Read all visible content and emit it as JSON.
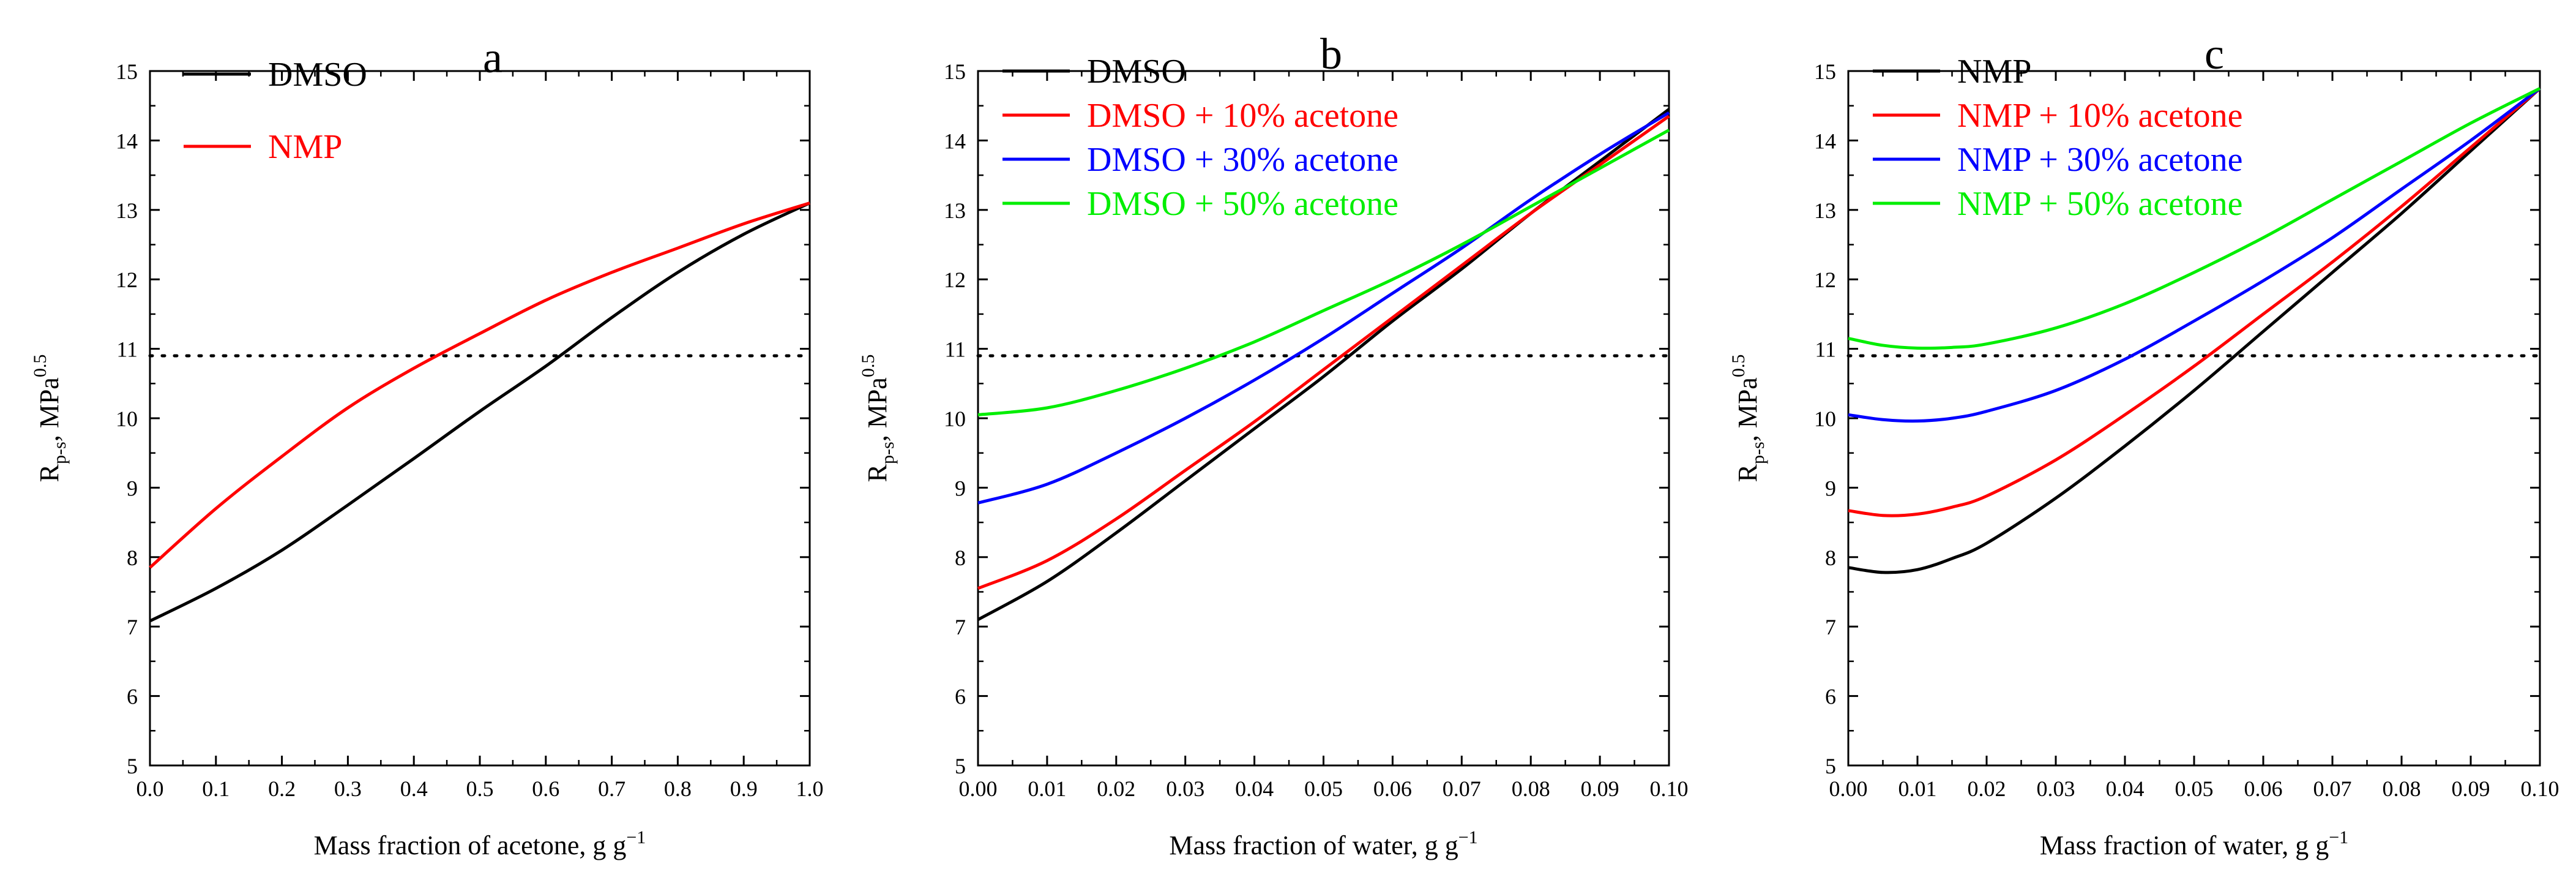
{
  "chart_data": [
    {
      "panel_label": "a",
      "type": "line",
      "xlabel": "Mass fraction of acetone, g g",
      "xlabel_sup": "−1",
      "ylabel": "R",
      "ylabel_sub": "p-s",
      "ylabel_unit": ", MPa",
      "ylabel_sup": "0.5",
      "xlim": [
        0.0,
        1.0
      ],
      "ylim": [
        5,
        15
      ],
      "xticks": [
        "0.0",
        "0.1",
        "0.2",
        "0.3",
        "0.4",
        "0.5",
        "0.6",
        "0.7",
        "0.8",
        "0.9",
        "1.0"
      ],
      "yticks": [
        "5",
        "6",
        "7",
        "8",
        "9",
        "10",
        "11",
        "12",
        "13",
        "14",
        "15"
      ],
      "reference_line": {
        "y": 10.9,
        "style": "dotted"
      },
      "legend_position": "top-left",
      "series": [
        {
          "name": "DMSO",
          "color": "#000000",
          "x": [
            0.0,
            0.1,
            0.2,
            0.3,
            0.4,
            0.5,
            0.6,
            0.7,
            0.8,
            0.9,
            1.0
          ],
          "y": [
            7.08,
            7.55,
            8.1,
            8.75,
            9.42,
            10.1,
            10.75,
            11.45,
            12.1,
            12.65,
            13.1
          ]
        },
        {
          "name": "NMP",
          "color": "#ff0000",
          "x": [
            0.0,
            0.1,
            0.2,
            0.3,
            0.4,
            0.5,
            0.6,
            0.7,
            0.8,
            0.9,
            1.0
          ],
          "y": [
            7.85,
            8.7,
            9.45,
            10.15,
            10.72,
            11.22,
            11.7,
            12.1,
            12.45,
            12.8,
            13.1
          ]
        }
      ]
    },
    {
      "panel_label": "b",
      "type": "line",
      "xlabel": "Mass fraction of water, g g",
      "xlabel_sup": "−1",
      "ylabel": "R",
      "ylabel_sub": "p-s",
      "ylabel_unit": ", MPa",
      "ylabel_sup": "0.5",
      "xlim": [
        0.0,
        0.1
      ],
      "ylim": [
        5,
        15
      ],
      "xticks": [
        "0.00",
        "0.01",
        "0.02",
        "0.03",
        "0.04",
        "0.05",
        "0.06",
        "0.07",
        "0.08",
        "0.09",
        "0.10"
      ],
      "yticks": [
        "5",
        "6",
        "7",
        "8",
        "9",
        "10",
        "11",
        "12",
        "13",
        "14",
        "15"
      ],
      "reference_line": {
        "y": 10.9,
        "style": "dotted"
      },
      "legend_position": "top-left",
      "series": [
        {
          "name": "DMSO",
          "color": "#000000",
          "x": [
            0.0,
            0.01,
            0.02,
            0.03,
            0.04,
            0.05,
            0.06,
            0.07,
            0.08,
            0.09,
            0.1
          ],
          "y": [
            7.1,
            7.65,
            8.35,
            9.1,
            9.85,
            10.6,
            11.4,
            12.15,
            12.95,
            13.7,
            14.45
          ]
        },
        {
          "name": "DMSO + 10% acetone",
          "color": "#ff0000",
          "x": [
            0.0,
            0.01,
            0.02,
            0.03,
            0.04,
            0.05,
            0.06,
            0.07,
            0.08,
            0.09,
            0.1
          ],
          "y": [
            7.55,
            7.95,
            8.55,
            9.25,
            9.95,
            10.7,
            11.45,
            12.2,
            12.95,
            13.65,
            14.35
          ]
        },
        {
          "name": "DMSO + 30% acetone",
          "color": "#0000ff",
          "x": [
            0.0,
            0.01,
            0.02,
            0.03,
            0.04,
            0.05,
            0.06,
            0.07,
            0.08,
            0.09,
            0.1
          ],
          "y": [
            8.78,
            9.05,
            9.5,
            10.0,
            10.55,
            11.15,
            11.8,
            12.45,
            13.15,
            13.8,
            14.4
          ]
        },
        {
          "name": "DMSO + 50% acetone",
          "color": "#00ee00",
          "x": [
            0.0,
            0.01,
            0.02,
            0.03,
            0.04,
            0.05,
            0.06,
            0.07,
            0.08,
            0.09,
            0.1
          ],
          "y": [
            10.05,
            10.15,
            10.4,
            10.72,
            11.1,
            11.55,
            12.0,
            12.5,
            13.05,
            13.6,
            14.15
          ]
        }
      ]
    },
    {
      "panel_label": "c",
      "type": "line",
      "xlabel": "Mass fraction of water, g g",
      "xlabel_sup": "−1",
      "ylabel": "R",
      "ylabel_sub": "p-s",
      "ylabel_unit": ", MPa",
      "ylabel_sup": "0.5",
      "xlim": [
        0.0,
        0.1
      ],
      "ylim": [
        5,
        15
      ],
      "xticks": [
        "0.00",
        "0.01",
        "0.02",
        "0.03",
        "0.04",
        "0.05",
        "0.06",
        "0.07",
        "0.08",
        "0.09",
        "0.10"
      ],
      "yticks": [
        "5",
        "6",
        "7",
        "8",
        "9",
        "10",
        "11",
        "12",
        "13",
        "14",
        "15"
      ],
      "reference_line": {
        "y": 10.9,
        "style": "dotted"
      },
      "legend_position": "top-left",
      "series": [
        {
          "name": "NMP",
          "color": "#000000",
          "x": [
            0.0,
            0.005,
            0.01,
            0.015,
            0.02,
            0.03,
            0.04,
            0.05,
            0.06,
            0.07,
            0.08,
            0.09,
            0.1
          ],
          "y": [
            7.85,
            7.78,
            7.82,
            7.98,
            8.2,
            8.85,
            9.6,
            10.4,
            11.25,
            12.1,
            12.95,
            13.85,
            14.75
          ]
        },
        {
          "name": "NMP + 10% acetone",
          "color": "#ff0000",
          "x": [
            0.0,
            0.005,
            0.01,
            0.015,
            0.02,
            0.03,
            0.04,
            0.05,
            0.06,
            0.07,
            0.08,
            0.09,
            0.1
          ],
          "y": [
            8.67,
            8.6,
            8.62,
            8.72,
            8.88,
            9.4,
            10.05,
            10.75,
            11.5,
            12.25,
            13.05,
            13.9,
            14.75
          ]
        },
        {
          "name": "NMP + 30% acetone",
          "color": "#0000ff",
          "x": [
            0.0,
            0.005,
            0.01,
            0.015,
            0.02,
            0.03,
            0.04,
            0.05,
            0.06,
            0.07,
            0.08,
            0.09,
            0.1
          ],
          "y": [
            10.05,
            9.98,
            9.96,
            10.0,
            10.1,
            10.4,
            10.85,
            11.4,
            11.98,
            12.6,
            13.3,
            14.0,
            14.75
          ]
        },
        {
          "name": "NMP + 50% acetone",
          "color": "#00ee00",
          "x": [
            0.0,
            0.005,
            0.01,
            0.015,
            0.02,
            0.03,
            0.04,
            0.05,
            0.06,
            0.07,
            0.08,
            0.09,
            0.1
          ],
          "y": [
            11.15,
            11.05,
            11.01,
            11.02,
            11.07,
            11.3,
            11.65,
            12.1,
            12.6,
            13.15,
            13.7,
            14.25,
            14.75
          ]
        }
      ]
    }
  ]
}
